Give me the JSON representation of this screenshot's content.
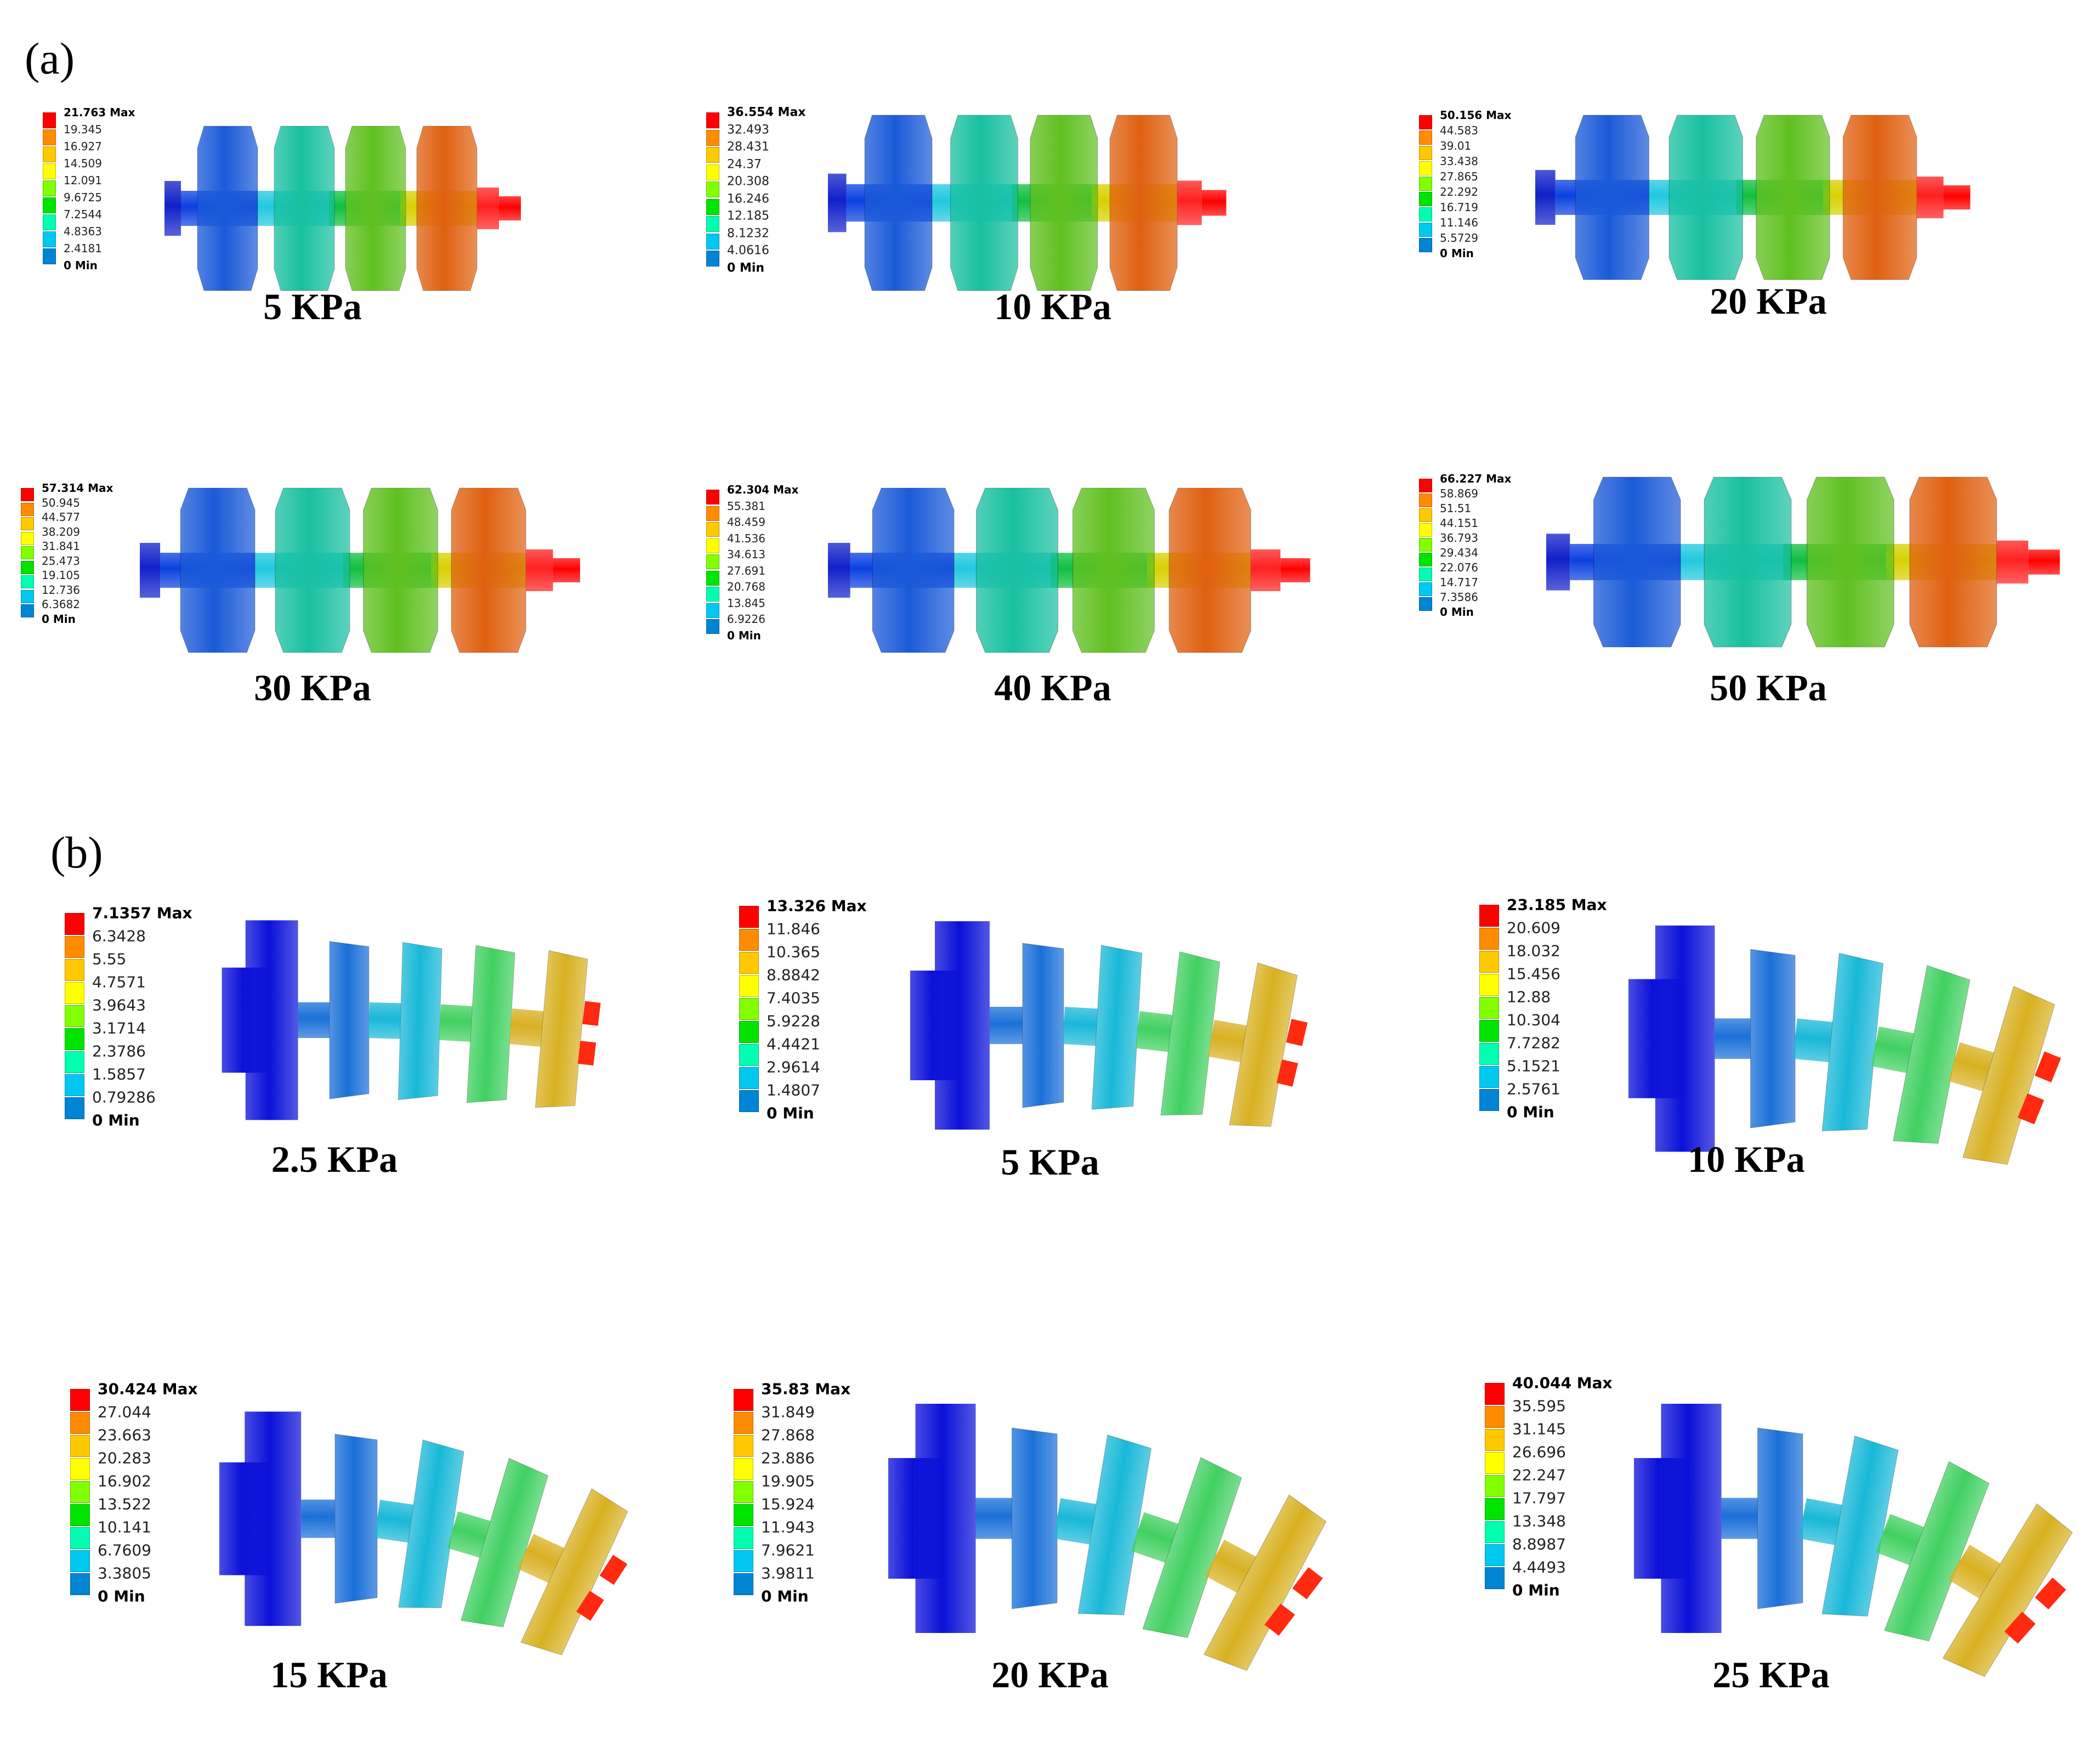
{
  "figure": {
    "section_a_label": "(a)",
    "section_b_label": "(b)",
    "colormap": [
      "#0000ff",
      "#0084d4",
      "#00c8f0",
      "#00ffb0",
      "#00e400",
      "#82ff00",
      "#ffff00",
      "#ffc800",
      "#ff8c00",
      "#ff0000"
    ]
  },
  "panels": [
    {
      "group": "a",
      "caption": "5 KPa",
      "legend": [
        "21.763 Max",
        "19.345",
        "16.927",
        "14.509",
        "12.091",
        "9.6725",
        "7.2544",
        "4.8363",
        "2.4181",
        "0 Min"
      ]
    },
    {
      "group": "a",
      "caption": "10 KPa",
      "legend": [
        "36.554 Max",
        "32.493",
        "28.431",
        "24.37",
        "20.308",
        "16.246",
        "12.185",
        "8.1232",
        "4.0616",
        "0 Min"
      ]
    },
    {
      "group": "a",
      "caption": "20 KPa",
      "legend": [
        "50.156 Max",
        "44.583",
        "39.01",
        "33.438",
        "27.865",
        "22.292",
        "16.719",
        "11.146",
        "5.5729",
        "0 Min"
      ]
    },
    {
      "group": "a",
      "caption": "30 KPa",
      "legend": [
        "57.314 Max",
        "50.945",
        "44.577",
        "38.209",
        "31.841",
        "25.473",
        "19.105",
        "12.736",
        "6.3682",
        "0 Min"
      ]
    },
    {
      "group": "a",
      "caption": "40 KPa",
      "legend": [
        "62.304 Max",
        "55.381",
        "48.459",
        "41.536",
        "34.613",
        "27.691",
        "20.768",
        "13.845",
        "6.9226",
        "0 Min"
      ]
    },
    {
      "group": "a",
      "caption": "50 KPa",
      "legend": [
        "66.227 Max",
        "58.869",
        "51.51",
        "44.151",
        "36.793",
        "29.434",
        "22.076",
        "14.717",
        "7.3586",
        "0 Min"
      ]
    },
    {
      "group": "b",
      "caption": "2.5 KPa",
      "bend": 6,
      "legend": [
        "7.1357 Max",
        "6.3428",
        "5.55",
        "4.7571",
        "3.9643",
        "3.1714",
        "2.3786",
        "1.5857",
        "0.79286",
        "0 Min"
      ]
    },
    {
      "group": "b",
      "caption": "5 KPa",
      "bend": 12,
      "legend": [
        "13.326 Max",
        "11.846",
        "10.365",
        "8.8842",
        "7.4035",
        "5.9228",
        "4.4421",
        "2.9614",
        "1.4807",
        "0 Min"
      ]
    },
    {
      "group": "b",
      "caption": "10 KPa",
      "bend": 20,
      "legend": [
        "23.185 Max",
        "20.609",
        "18.032",
        "15.456",
        "12.88",
        "10.304",
        "7.7282",
        "5.1521",
        "2.5761",
        "0 Min"
      ]
    },
    {
      "group": "b",
      "caption": "15 KPa",
      "bend": 30,
      "legend": [
        "30.424 Max",
        "27.044",
        "23.663",
        "20.283",
        "16.902",
        "13.522",
        "10.141",
        "6.7609",
        "3.3805",
        "0 Min"
      ]
    },
    {
      "group": "b",
      "caption": "20 KPa",
      "bend": 34,
      "legend": [
        "35.83 Max",
        "31.849",
        "27.868",
        "23.886",
        "19.905",
        "15.924",
        "11.943",
        "7.9621",
        "3.9811",
        "0 Min"
      ]
    },
    {
      "group": "b",
      "caption": "25 KPa",
      "bend": 38,
      "legend": [
        "40.044 Max",
        "35.595",
        "31.145",
        "26.696",
        "22.247",
        "17.797",
        "13.348",
        "8.8987",
        "4.4493",
        "0 Min"
      ]
    }
  ]
}
